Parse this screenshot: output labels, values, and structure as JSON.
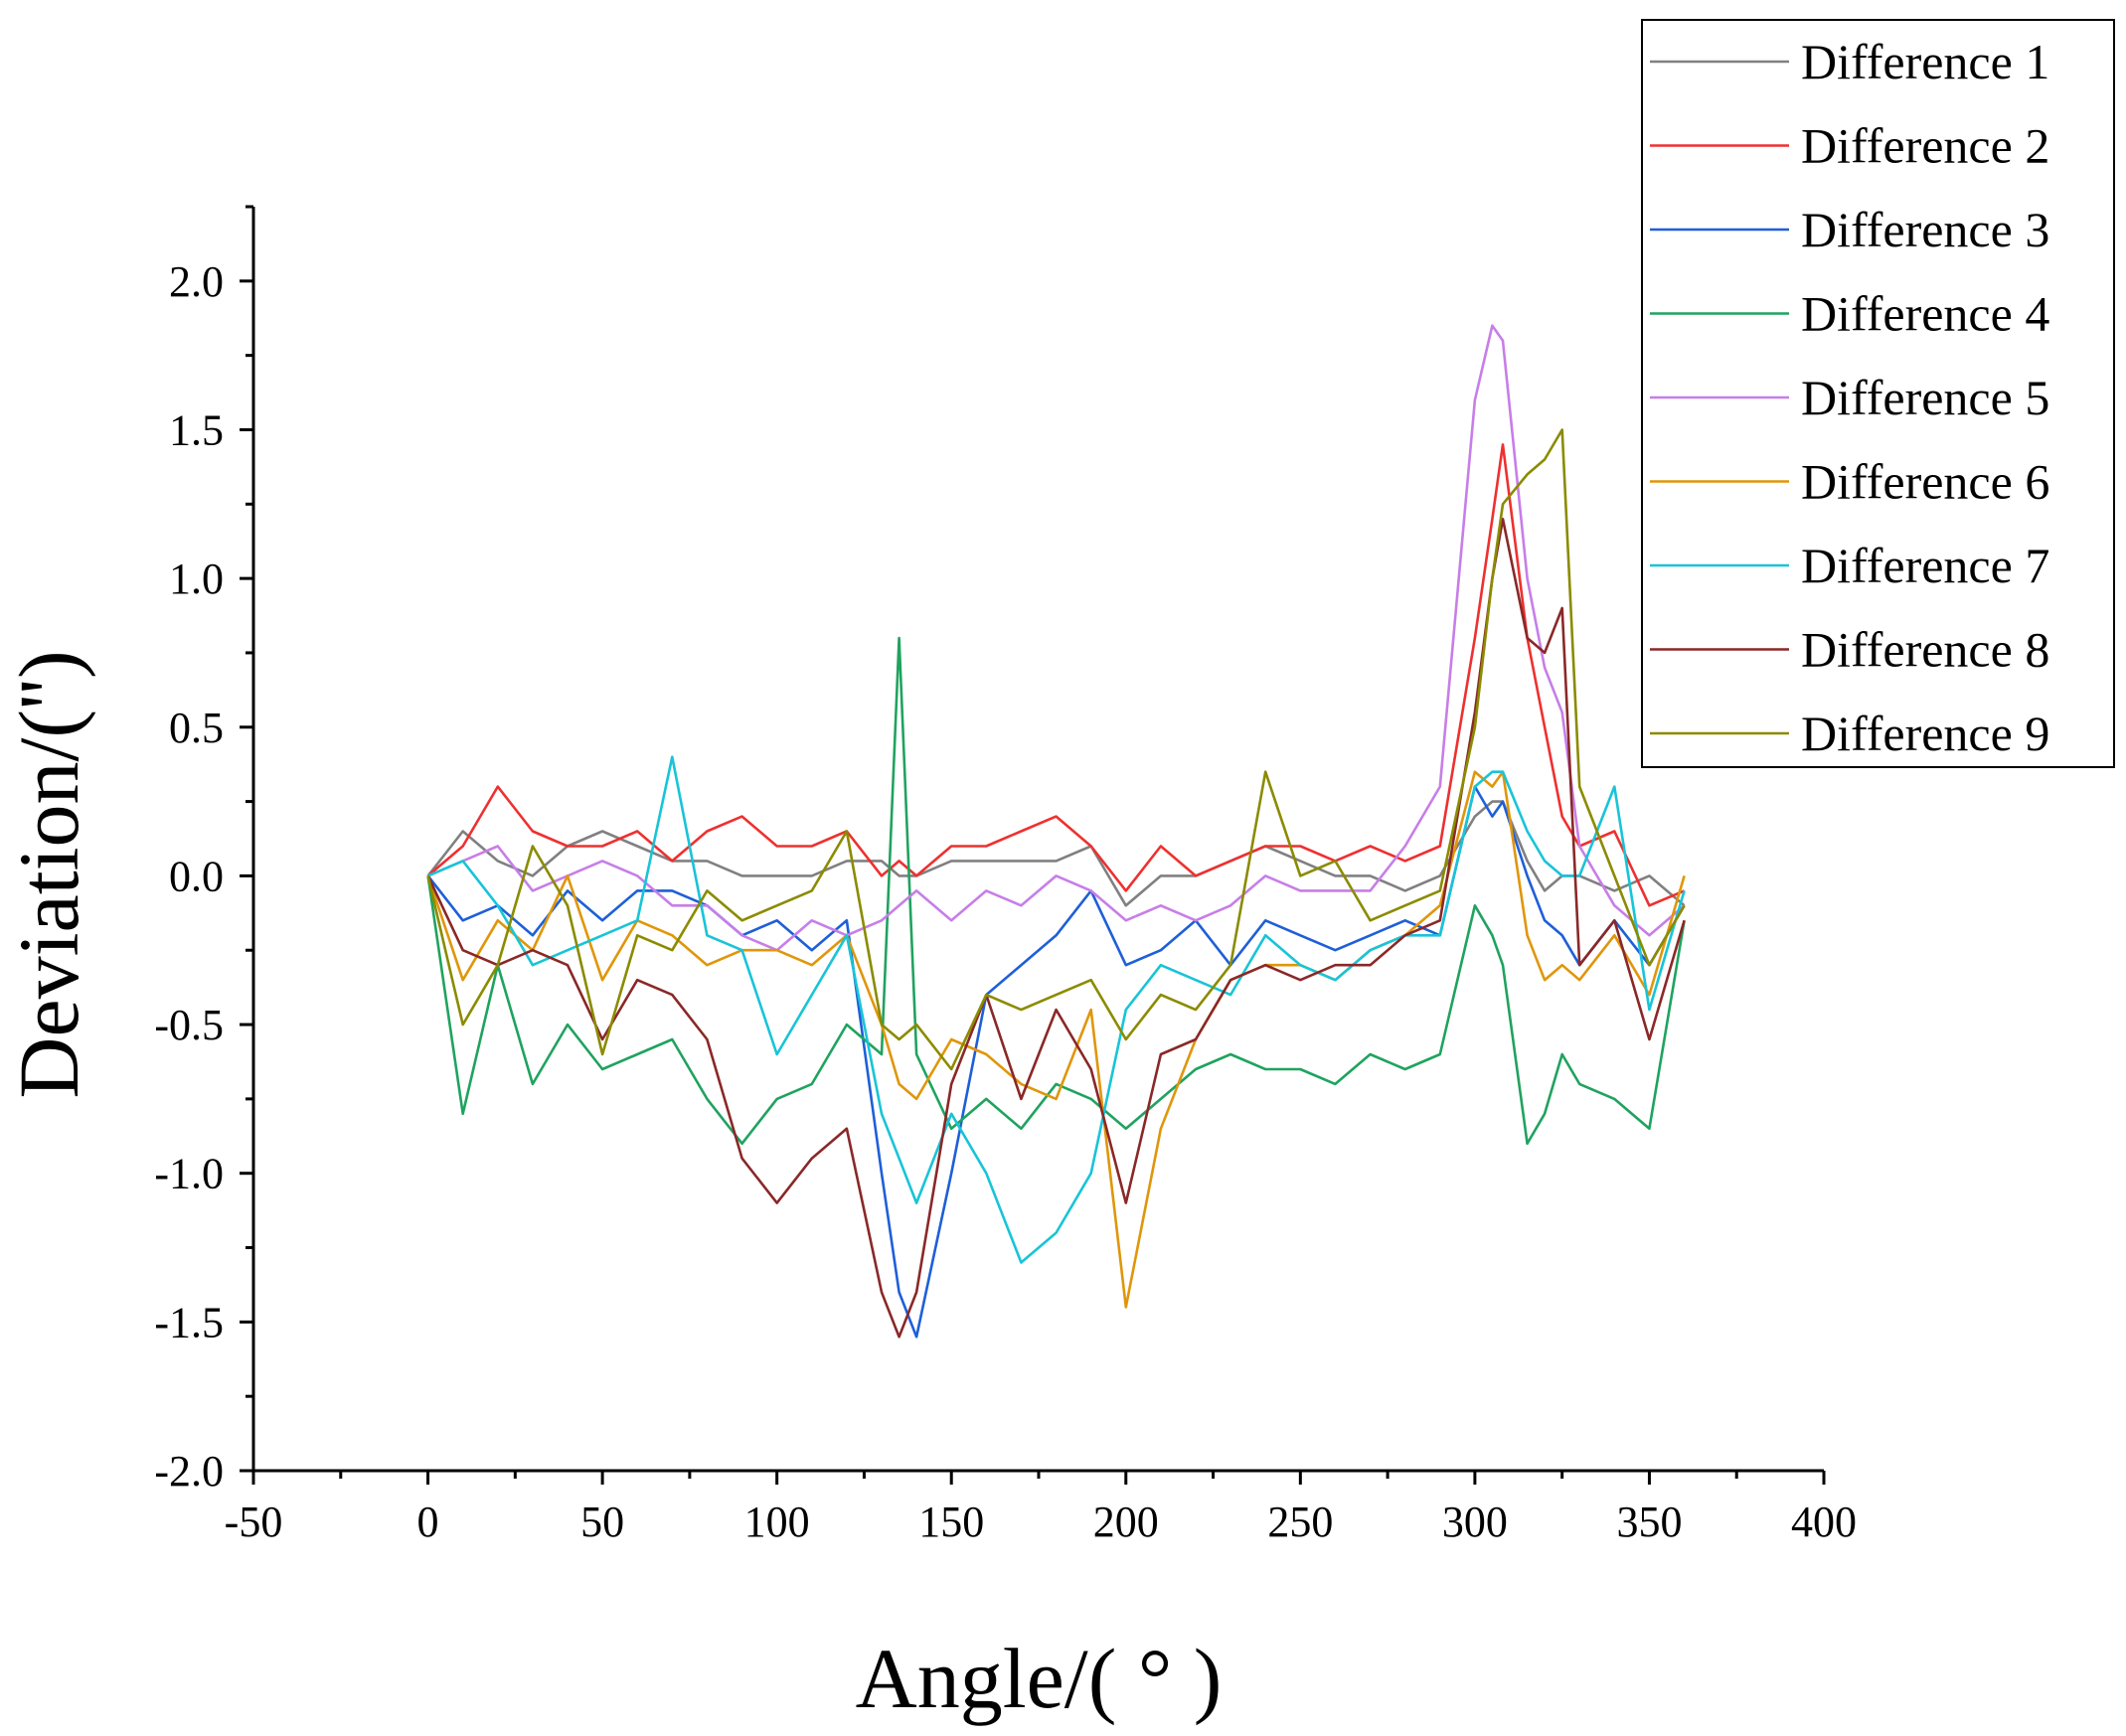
{
  "chart_data": {
    "type": "line",
    "title": "",
    "xlabel": "Angle/( ° )",
    "ylabel": "Deviation/('')",
    "xlim": [
      -50,
      400
    ],
    "ylim": [
      -2.0,
      2.25
    ],
    "xticks": [
      "-50",
      "0",
      "50",
      "100",
      "150",
      "200",
      "250",
      "300",
      "350",
      "400"
    ],
    "yticks": [
      "-2.0",
      "-1.5",
      "-1.0",
      "-0.5",
      "0.0",
      "0.5",
      "1.0",
      "1.5",
      "2.0"
    ],
    "grid": false,
    "legend_position": "top-right",
    "x": [
      0,
      10,
      20,
      30,
      40,
      50,
      60,
      70,
      80,
      90,
      100,
      110,
      120,
      130,
      135,
      140,
      150,
      160,
      170,
      180,
      190,
      200,
      210,
      220,
      230,
      240,
      250,
      260,
      270,
      280,
      290,
      300,
      305,
      308,
      315,
      320,
      325,
      330,
      340,
      350,
      360
    ],
    "series": [
      {
        "name": "Difference 1",
        "color": "#808080",
        "values": [
          0.0,
          0.15,
          0.05,
          0.0,
          0.1,
          0.15,
          0.1,
          0.05,
          0.05,
          0.0,
          0.0,
          0.0,
          0.05,
          0.05,
          0.0,
          0.0,
          0.05,
          0.05,
          0.05,
          0.05,
          0.1,
          -0.1,
          0.0,
          0.0,
          0.05,
          0.1,
          0.05,
          0.0,
          0.0,
          -0.05,
          0.0,
          0.2,
          0.25,
          0.25,
          0.05,
          -0.05,
          0.0,
          0.0,
          -0.05,
          0.0,
          -0.1
        ]
      },
      {
        "name": "Difference 2",
        "color": "#ee3030",
        "values": [
          0.0,
          0.1,
          0.3,
          0.15,
          0.1,
          0.1,
          0.15,
          0.05,
          0.15,
          0.2,
          0.1,
          0.1,
          0.15,
          0.0,
          0.05,
          0.0,
          0.1,
          0.1,
          0.15,
          0.2,
          0.1,
          -0.05,
          0.1,
          0.0,
          0.05,
          0.1,
          0.1,
          0.05,
          0.1,
          0.05,
          0.1,
          0.8,
          1.2,
          1.45,
          0.8,
          0.5,
          0.2,
          0.1,
          0.15,
          -0.1,
          -0.05
        ]
      },
      {
        "name": "Difference 3",
        "color": "#1e5fd8",
        "values": [
          0.0,
          -0.15,
          -0.1,
          -0.2,
          -0.05,
          -0.15,
          -0.05,
          -0.05,
          -0.1,
          -0.2,
          -0.15,
          -0.25,
          -0.15,
          -1.0,
          -1.4,
          -1.55,
          -1.0,
          -0.4,
          -0.3,
          -0.2,
          -0.05,
          -0.3,
          -0.25,
          -0.15,
          -0.3,
          -0.15,
          -0.2,
          -0.25,
          -0.2,
          -0.15,
          -0.2,
          0.3,
          0.2,
          0.25,
          0.0,
          -0.15,
          -0.2,
          -0.3,
          -0.15,
          -0.3,
          -0.1
        ]
      },
      {
        "name": "Difference 4",
        "color": "#1fa35f",
        "values": [
          0.0,
          -0.8,
          -0.3,
          -0.7,
          -0.5,
          -0.65,
          -0.6,
          -0.55,
          -0.75,
          -0.9,
          -0.75,
          -0.7,
          -0.5,
          -0.6,
          0.8,
          -0.6,
          -0.85,
          -0.75,
          -0.85,
          -0.7,
          -0.75,
          -0.85,
          -0.75,
          -0.65,
          -0.6,
          -0.65,
          -0.65,
          -0.7,
          -0.6,
          -0.65,
          -0.6,
          -0.1,
          -0.2,
          -0.3,
          -0.9,
          -0.8,
          -0.6,
          -0.7,
          -0.75,
          -0.85,
          -0.15
        ]
      },
      {
        "name": "Difference 5",
        "color": "#c77ee8",
        "values": [
          0.0,
          0.05,
          0.1,
          -0.05,
          0.0,
          0.05,
          0.0,
          -0.1,
          -0.1,
          -0.2,
          -0.25,
          -0.15,
          -0.2,
          -0.15,
          -0.1,
          -0.05,
          -0.15,
          -0.05,
          -0.1,
          0.0,
          -0.05,
          -0.15,
          -0.1,
          -0.15,
          -0.1,
          0.0,
          -0.05,
          -0.05,
          -0.05,
          0.1,
          0.3,
          1.6,
          1.85,
          1.8,
          1.0,
          0.7,
          0.55,
          0.1,
          -0.1,
          -0.2,
          -0.1
        ]
      },
      {
        "name": "Difference 6",
        "color": "#e0960a",
        "values": [
          0.0,
          -0.35,
          -0.15,
          -0.25,
          0.0,
          -0.35,
          -0.15,
          -0.2,
          -0.3,
          -0.25,
          -0.25,
          -0.3,
          -0.2,
          -0.5,
          -0.7,
          -0.75,
          -0.55,
          -0.6,
          -0.7,
          -0.75,
          -0.45,
          -1.45,
          -0.85,
          -0.55,
          -0.35,
          -0.3,
          -0.3,
          -0.35,
          -0.25,
          -0.2,
          -0.1,
          0.35,
          0.3,
          0.35,
          -0.2,
          -0.35,
          -0.3,
          -0.35,
          -0.2,
          -0.4,
          0.0
        ]
      },
      {
        "name": "Difference 7",
        "color": "#18c4d8",
        "values": [
          0.0,
          0.05,
          -0.1,
          -0.3,
          -0.25,
          -0.2,
          -0.15,
          0.4,
          -0.2,
          -0.25,
          -0.6,
          -0.4,
          -0.2,
          -0.8,
          -0.95,
          -1.1,
          -0.8,
          -1.0,
          -1.3,
          -1.2,
          -1.0,
          -0.45,
          -0.3,
          -0.35,
          -0.4,
          -0.2,
          -0.3,
          -0.35,
          -0.25,
          -0.2,
          -0.2,
          0.3,
          0.35,
          0.35,
          0.15,
          0.05,
          0.0,
          0.0,
          0.3,
          -0.45,
          -0.05
        ]
      },
      {
        "name": "Difference 8",
        "color": "#8a2828",
        "values": [
          0.0,
          -0.25,
          -0.3,
          -0.25,
          -0.3,
          -0.55,
          -0.35,
          -0.4,
          -0.55,
          -0.95,
          -1.1,
          -0.95,
          -0.85,
          -1.4,
          -1.55,
          -1.4,
          -0.7,
          -0.4,
          -0.75,
          -0.45,
          -0.65,
          -1.1,
          -0.6,
          -0.55,
          -0.35,
          -0.3,
          -0.35,
          -0.3,
          -0.3,
          -0.2,
          -0.15,
          0.55,
          1.0,
          1.2,
          0.8,
          0.75,
          0.9,
          -0.3,
          -0.15,
          -0.55,
          -0.15
        ]
      },
      {
        "name": "Difference 9",
        "color": "#8b8b00",
        "values": [
          0.0,
          -0.5,
          -0.3,
          0.1,
          -0.1,
          -0.6,
          -0.2,
          -0.25,
          -0.05,
          -0.15,
          -0.1,
          -0.05,
          0.15,
          -0.5,
          -0.55,
          -0.5,
          -0.65,
          -0.4,
          -0.45,
          -0.4,
          -0.35,
          -0.55,
          -0.4,
          -0.45,
          -0.3,
          0.35,
          0.0,
          0.05,
          -0.15,
          -0.1,
          -0.05,
          0.5,
          1.0,
          1.25,
          1.35,
          1.4,
          1.5,
          0.3,
          0.0,
          -0.3,
          -0.1
        ]
      }
    ]
  }
}
